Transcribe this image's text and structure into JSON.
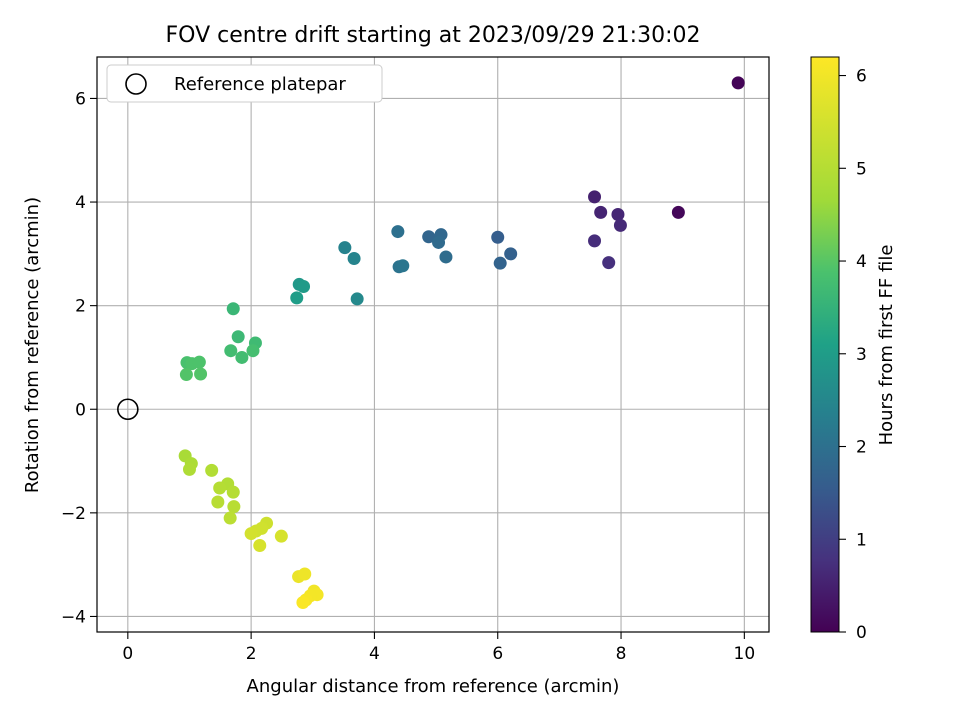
{
  "chart_data": {
    "type": "scatter",
    "title": "FOV centre drift starting at 2023/09/29 21:30:02",
    "xlabel": "Angular distance from reference (arcmin)",
    "ylabel": "Rotation from reference (arcmin)",
    "xlim": [
      -0.5,
      10.4
    ],
    "ylim": [
      -4.3,
      6.8
    ],
    "xticks": [
      0,
      2,
      4,
      6,
      8,
      10
    ],
    "yticks": [
      -4,
      -2,
      0,
      2,
      4,
      6
    ],
    "grid": true,
    "legend": {
      "position": "top-left",
      "entries": [
        "Reference platepar"
      ]
    },
    "colorbar": {
      "label": "Hours from first FF file",
      "range": [
        0,
        6.2
      ],
      "ticks": [
        0,
        1,
        2,
        3,
        4,
        5,
        6
      ],
      "colormap": "viridis"
    },
    "reference_point": {
      "x": 0,
      "y": 0
    },
    "points": [
      {
        "x": 9.9,
        "y": 6.3,
        "c": 0.05
      },
      {
        "x": 8.93,
        "y": 3.8,
        "c": 0.1
      },
      {
        "x": 7.57,
        "y": 4.1,
        "c": 0.5
      },
      {
        "x": 7.67,
        "y": 3.8,
        "c": 0.55
      },
      {
        "x": 7.95,
        "y": 3.76,
        "c": 0.6
      },
      {
        "x": 7.99,
        "y": 3.55,
        "c": 0.65
      },
      {
        "x": 7.57,
        "y": 3.25,
        "c": 0.7
      },
      {
        "x": 7.8,
        "y": 2.83,
        "c": 0.75
      },
      {
        "x": 6.0,
        "y": 3.32,
        "c": 1.6
      },
      {
        "x": 6.21,
        "y": 3.0,
        "c": 1.65
      },
      {
        "x": 6.04,
        "y": 2.82,
        "c": 1.7
      },
      {
        "x": 4.88,
        "y": 3.33,
        "c": 1.75
      },
      {
        "x": 5.08,
        "y": 3.37,
        "c": 1.8
      },
      {
        "x": 5.04,
        "y": 3.22,
        "c": 1.85
      },
      {
        "x": 5.16,
        "y": 2.94,
        "c": 1.9
      },
      {
        "x": 4.38,
        "y": 3.43,
        "c": 2.0
      },
      {
        "x": 4.4,
        "y": 2.75,
        "c": 2.05
      },
      {
        "x": 4.46,
        "y": 2.77,
        "c": 2.1
      },
      {
        "x": 3.52,
        "y": 3.12,
        "c": 2.4
      },
      {
        "x": 3.67,
        "y": 2.91,
        "c": 2.45
      },
      {
        "x": 3.72,
        "y": 2.13,
        "c": 2.55
      },
      {
        "x": 2.78,
        "y": 2.41,
        "c": 2.9
      },
      {
        "x": 2.85,
        "y": 2.37,
        "c": 2.95
      },
      {
        "x": 2.74,
        "y": 2.15,
        "c": 3.0
      },
      {
        "x": 1.71,
        "y": 1.94,
        "c": 3.6
      },
      {
        "x": 1.79,
        "y": 1.4,
        "c": 3.65
      },
      {
        "x": 2.07,
        "y": 1.28,
        "c": 3.7
      },
      {
        "x": 1.67,
        "y": 1.13,
        "c": 3.75
      },
      {
        "x": 2.03,
        "y": 1.13,
        "c": 3.8
      },
      {
        "x": 1.85,
        "y": 1.0,
        "c": 3.75
      },
      {
        "x": 0.96,
        "y": 0.9,
        "c": 3.85
      },
      {
        "x": 1.04,
        "y": 0.88,
        "c": 3.9
      },
      {
        "x": 1.16,
        "y": 0.91,
        "c": 3.9
      },
      {
        "x": 0.95,
        "y": 0.67,
        "c": 3.95
      },
      {
        "x": 1.18,
        "y": 0.68,
        "c": 3.95
      },
      {
        "x": 0.93,
        "y": -0.9,
        "c": 4.8
      },
      {
        "x": 1.03,
        "y": -1.05,
        "c": 4.85
      },
      {
        "x": 1.0,
        "y": -1.16,
        "c": 4.9
      },
      {
        "x": 1.36,
        "y": -1.18,
        "c": 4.95
      },
      {
        "x": 1.62,
        "y": -1.44,
        "c": 4.95
      },
      {
        "x": 1.49,
        "y": -1.52,
        "c": 5.0
      },
      {
        "x": 1.71,
        "y": -1.6,
        "c": 5.0
      },
      {
        "x": 1.46,
        "y": -1.79,
        "c": 5.05
      },
      {
        "x": 1.72,
        "y": -1.88,
        "c": 5.05
      },
      {
        "x": 1.66,
        "y": -2.1,
        "c": 5.1
      },
      {
        "x": 2.25,
        "y": -2.2,
        "c": 5.4
      },
      {
        "x": 2.17,
        "y": -2.3,
        "c": 5.45
      },
      {
        "x": 2.08,
        "y": -2.35,
        "c": 5.45
      },
      {
        "x": 2.0,
        "y": -2.4,
        "c": 5.5
      },
      {
        "x": 2.49,
        "y": -2.45,
        "c": 5.55
      },
      {
        "x": 2.14,
        "y": -2.63,
        "c": 5.55
      },
      {
        "x": 2.77,
        "y": -3.23,
        "c": 5.9
      },
      {
        "x": 2.87,
        "y": -3.18,
        "c": 5.95
      },
      {
        "x": 3.02,
        "y": -3.51,
        "c": 6.0
      },
      {
        "x": 3.07,
        "y": -3.58,
        "c": 6.05
      },
      {
        "x": 2.96,
        "y": -3.6,
        "c": 6.05
      },
      {
        "x": 2.89,
        "y": -3.68,
        "c": 6.1
      },
      {
        "x": 2.84,
        "y": -3.73,
        "c": 6.15
      }
    ]
  }
}
